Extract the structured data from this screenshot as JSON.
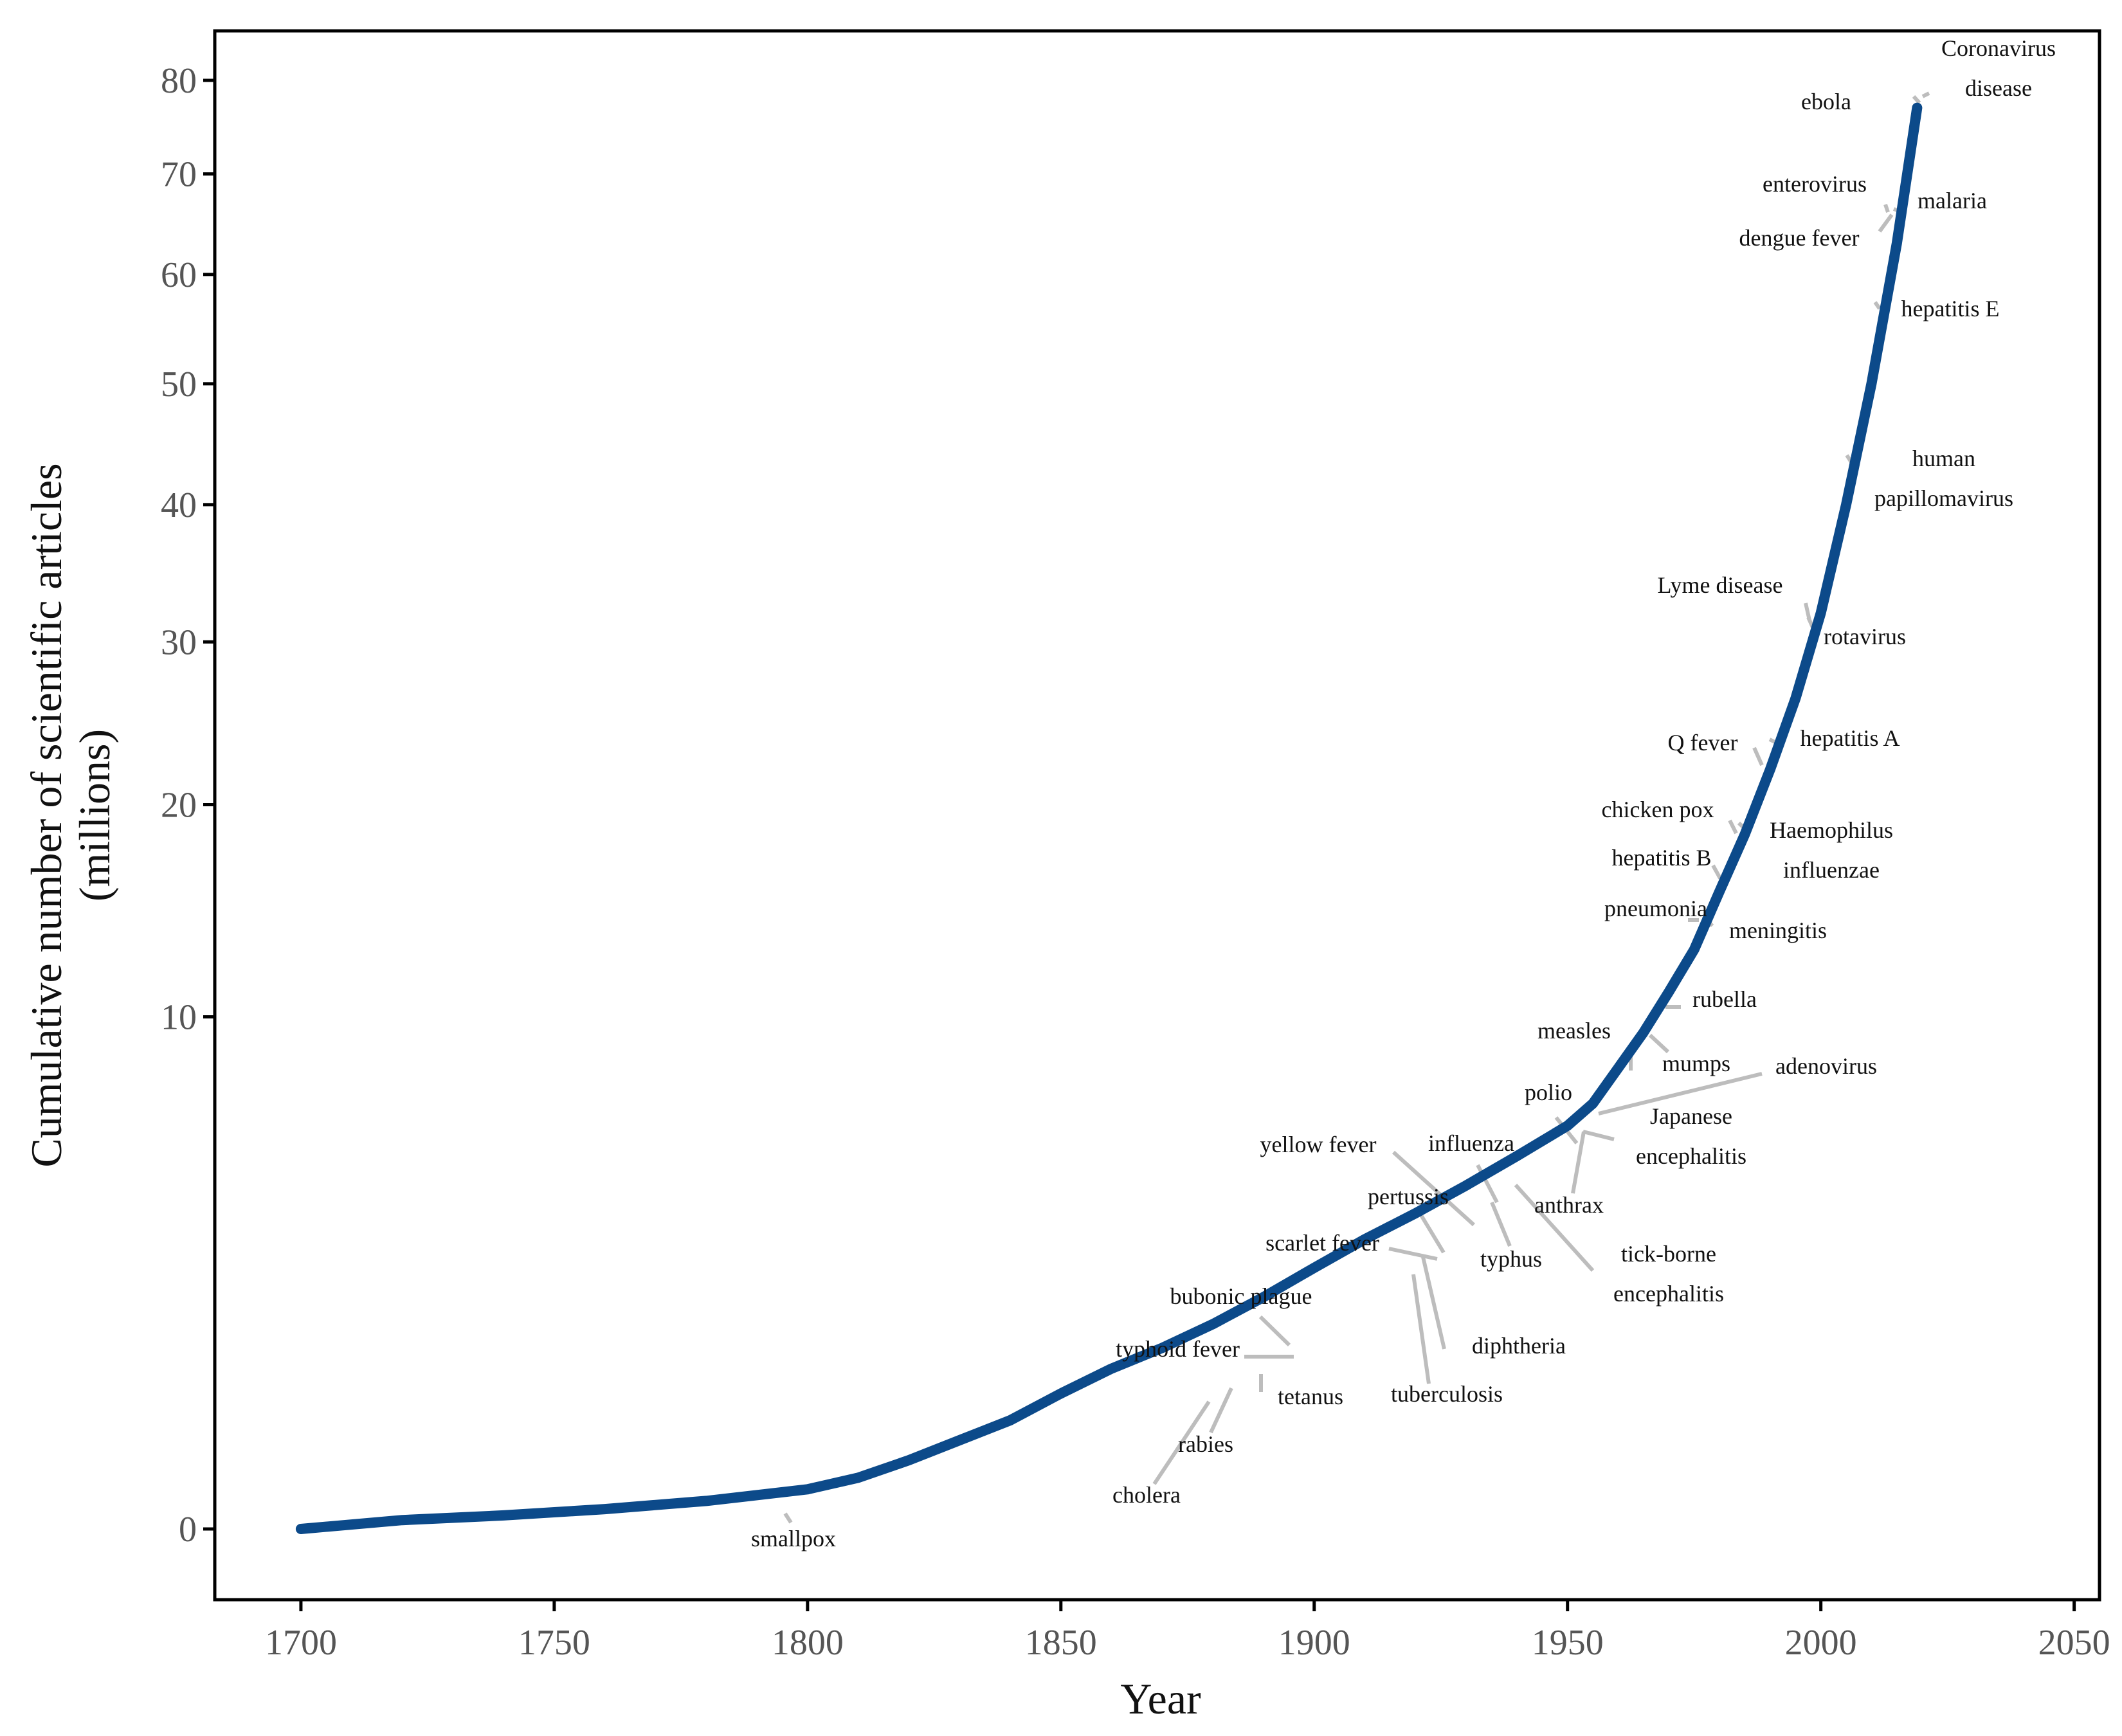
{
  "chart_data": {
    "type": "line",
    "title": "",
    "xlabel": "Year",
    "ylabel_lines": [
      "Cumulative number of scientific articles",
      "(millions)"
    ],
    "xlim": [
      1683,
      2055
    ],
    "y_scale": "sqrt",
    "ylim": [
      0,
      85
    ],
    "x_ticks": [
      1700,
      1750,
      1800,
      1850,
      1900,
      1950,
      2000,
      2050
    ],
    "y_ticks": [
      0,
      10,
      20,
      30,
      40,
      50,
      60,
      70,
      80
    ],
    "grid": false,
    "line_color": "#0c4a8a",
    "leader_color": "#bdbdbd",
    "series": [
      {
        "x": [
          1700,
          1720,
          1740,
          1760,
          1780,
          1800,
          1810,
          1820,
          1830,
          1840,
          1850,
          1860,
          1870,
          1880,
          1890,
          1900,
          1910,
          1920,
          1930,
          1940,
          1950,
          1955,
          1960,
          1965,
          1970,
          1975,
          1980,
          1985,
          1990,
          1995,
          2000,
          2005,
          2010,
          2015,
          2019
        ],
        "y": [
          0,
          0.003,
          0.007,
          0.015,
          0.03,
          0.06,
          0.1,
          0.18,
          0.3,
          0.45,
          0.7,
          0.98,
          1.25,
          1.6,
          2.05,
          2.6,
          3.2,
          3.8,
          4.5,
          5.3,
          6.2,
          6.9,
          8.1,
          9.4,
          11,
          12.8,
          15.5,
          18.4,
          22,
          26.3,
          32,
          40,
          50,
          63,
          77
        ]
      }
    ],
    "annotations": [
      {
        "lines": [
          "smallpox"
        ],
        "year": 1796
      },
      {
        "lines": [
          "cholera"
        ],
        "year": 1880
      },
      {
        "lines": [
          "rabies"
        ],
        "year": 1885
      },
      {
        "lines": [
          "tetanus"
        ],
        "year": 1890
      },
      {
        "lines": [
          "typhoid fever"
        ],
        "year": 1896
      },
      {
        "lines": [
          "bubonic plague"
        ],
        "year": 1897
      },
      {
        "lines": [
          "tuberculosis"
        ],
        "year": 1921
      },
      {
        "lines": [
          "diphtheria"
        ],
        "year": 1923
      },
      {
        "lines": [
          "scarlet fever"
        ],
        "year": 1925
      },
      {
        "lines": [
          "pertussis"
        ],
        "year": 1926
      },
      {
        "lines": [
          "yellow fever"
        ],
        "year": 1932
      },
      {
        "lines": [
          "influenza"
        ],
        "year": 1936
      },
      {
        "lines": [
          "typhus"
        ],
        "year": 1937
      },
      {
        "lines": [
          "tick-borne",
          "encephalitis"
        ],
        "year": 1941
      },
      {
        "lines": [
          "anthrax"
        ],
        "year": 1954
      },
      {
        "lines": [
          "polio"
        ],
        "year": 1954
      },
      {
        "lines": [
          "Japanese",
          "encephalitis"
        ],
        "year": 1954
      },
      {
        "lines": [
          "adenovirus"
        ],
        "year": 1956
      },
      {
        "lines": [
          "measles"
        ],
        "year": 1963
      },
      {
        "lines": [
          "mumps"
        ],
        "year": 1967
      },
      {
        "lines": [
          "rubella"
        ],
        "year": 1969
      },
      {
        "lines": [
          "pneumonia"
        ],
        "year": 1975
      },
      {
        "lines": [
          "meningitis"
        ],
        "year": 1977
      },
      {
        "lines": [
          "hepatitis B"
        ],
        "year": 1980
      },
      {
        "lines": [
          "chicken pox"
        ],
        "year": 1984
      },
      {
        "lines": [
          "Haemophilus",
          "influenzae"
        ],
        "year": 1985
      },
      {
        "lines": [
          "Q fever"
        ],
        "year": 1988
      },
      {
        "lines": [
          "hepatitis A"
        ],
        "year": 1991
      },
      {
        "lines": [
          "Lyme disease"
        ],
        "year": 1997
      },
      {
        "lines": [
          "rotavirus"
        ],
        "year": 1998
      },
      {
        "lines": [
          "human",
          "papillomavirus"
        ],
        "year": 2006
      },
      {
        "lines": [
          "hepatitis E"
        ],
        "year": 2012
      },
      {
        "lines": [
          "dengue fever"
        ],
        "year": 2014
      },
      {
        "lines": [
          "enterovirus"
        ],
        "year": 2015
      },
      {
        "lines": [
          "malaria"
        ],
        "year": 2015
      },
      {
        "lines": [
          "ebola"
        ],
        "year": 2019
      },
      {
        "lines": [
          "Coronavirus",
          "disease"
        ],
        "year": 2020
      }
    ]
  }
}
